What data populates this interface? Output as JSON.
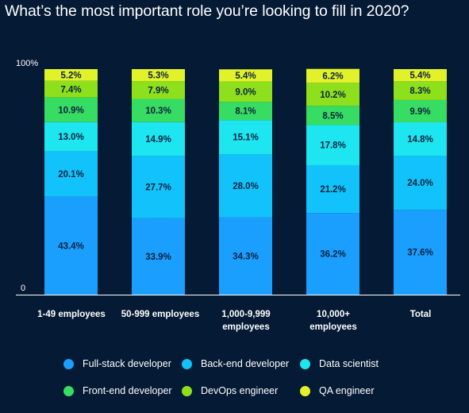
{
  "chart_data": {
    "type": "bar",
    "stacked": true,
    "title": "What’s the most important role you’re looking to fill in 2020?",
    "categories": [
      "1-49 employees",
      "50-999 employees",
      "1,000-9,999 employees",
      "10,000+ employees",
      "Total"
    ],
    "category_lines": [
      [
        "1-49 employees"
      ],
      [
        "50-999 employees"
      ],
      [
        "1,000-9,999",
        "employees"
      ],
      [
        "10,000+",
        "employees"
      ],
      [
        "Total"
      ]
    ],
    "ylim": [
      0,
      100
    ],
    "y_tick_labels": [
      "0",
      "100%"
    ],
    "legend_position": "bottom",
    "grid": false,
    "series": [
      {
        "name": "Full-stack developer",
        "color": "#1a9fff",
        "values": [
          43.4,
          33.9,
          34.3,
          36.2,
          37.6
        ],
        "labels": [
          "43.4%",
          "33.9%",
          "34.3%",
          "36.2%",
          "37.6%"
        ]
      },
      {
        "name": "Back-end developer",
        "color": "#12c3fb",
        "values": [
          20.1,
          27.7,
          28.0,
          21.2,
          24.0
        ],
        "labels": [
          "20.1%",
          "27.7%",
          "28.0%",
          "21.2%",
          "24.0%"
        ]
      },
      {
        "name": "Data scientist",
        "color": "#1ee6f0",
        "values": [
          13.0,
          14.9,
          15.1,
          17.8,
          14.8
        ],
        "labels": [
          "13.0%",
          "14.9%",
          "15.1%",
          "17.8%",
          "14.8%"
        ]
      },
      {
        "name": "Front-end developer",
        "color": "#37dd62",
        "values": [
          10.9,
          10.3,
          8.1,
          8.5,
          9.9
        ],
        "labels": [
          "10.9%",
          "10.3%",
          "8.1%",
          "8.5%",
          "9.9%"
        ]
      },
      {
        "name": "DevOps engineer",
        "color": "#8ee01c",
        "values": [
          7.4,
          7.9,
          9.0,
          10.2,
          8.3
        ],
        "labels": [
          "7.4%",
          "7.9%",
          "9.0%",
          "10.2%",
          "8.3%"
        ]
      },
      {
        "name": "QA engineer",
        "color": "#e2f22a",
        "values": [
          5.2,
          5.3,
          5.4,
          6.2,
          5.4
        ],
        "labels": [
          "5.2%",
          "5.3%",
          "5.4%",
          "6.2%",
          "5.4%"
        ]
      }
    ]
  },
  "colors": {
    "background": "#051a34",
    "text": "#ffffff",
    "label_on_bar": "#0c2240"
  }
}
